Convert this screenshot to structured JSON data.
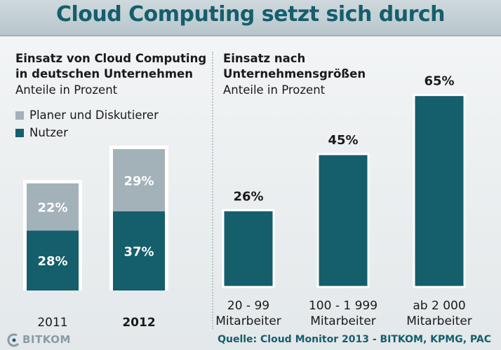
{
  "title": "Cloud Computing setzt sich durch",
  "left_panel": {
    "title_line1": "Einsatz von Cloud Computing",
    "title_line2": "in deutschen Unternehmen",
    "subtitle": "Anteile in Prozent",
    "legend": [
      {
        "label": "Planer und Diskutierer",
        "color": "#a3b1b8"
      },
      {
        "label": "Nutzer",
        "color": "#155e6c"
      }
    ]
  },
  "right_panel": {
    "title_line1": "Einsatz nach",
    "title_line2": "Unternehmensgrößen",
    "subtitle": "Anteile in Prozent"
  },
  "colors": {
    "nutzer": "#155e6c",
    "planer": "#a3b1b8",
    "title": "#155e6c"
  },
  "chart_data": [
    {
      "type": "bar",
      "stacked": true,
      "title": "Einsatz von Cloud Computing in deutschen Unternehmen",
      "subtitle": "Anteile in Prozent",
      "categories": [
        "2011",
        "2012"
      ],
      "category_bold": [
        false,
        true
      ],
      "series": [
        {
          "name": "Nutzer",
          "values": [
            28,
            37
          ],
          "labels": [
            "28%",
            "37%"
          ]
        },
        {
          "name": "Planer und Diskutierer",
          "values": [
            22,
            29
          ],
          "labels": [
            "22%",
            "29%"
          ]
        }
      ],
      "ylim": [
        0,
        70
      ],
      "grid": false,
      "legend": "top-left"
    },
    {
      "type": "bar",
      "title": "Einsatz nach Unternehmensgrößen",
      "subtitle": "Anteile in Prozent",
      "categories": [
        [
          "20 - 99",
          "Mitarbeiter"
        ],
        [
          "100 - 1 999",
          "Mitarbeiter"
        ],
        [
          "ab 2 000",
          "Mitarbeiter"
        ]
      ],
      "values": [
        26,
        45,
        65
      ],
      "labels": [
        "26%",
        "45%",
        "65%"
      ],
      "ylim": [
        0,
        70
      ],
      "grid": false
    }
  ],
  "footer": {
    "logo_text": "BITKOM",
    "source": "Quelle: Cloud Monitor 2013 - BITKOM, KPMG, PAC"
  }
}
